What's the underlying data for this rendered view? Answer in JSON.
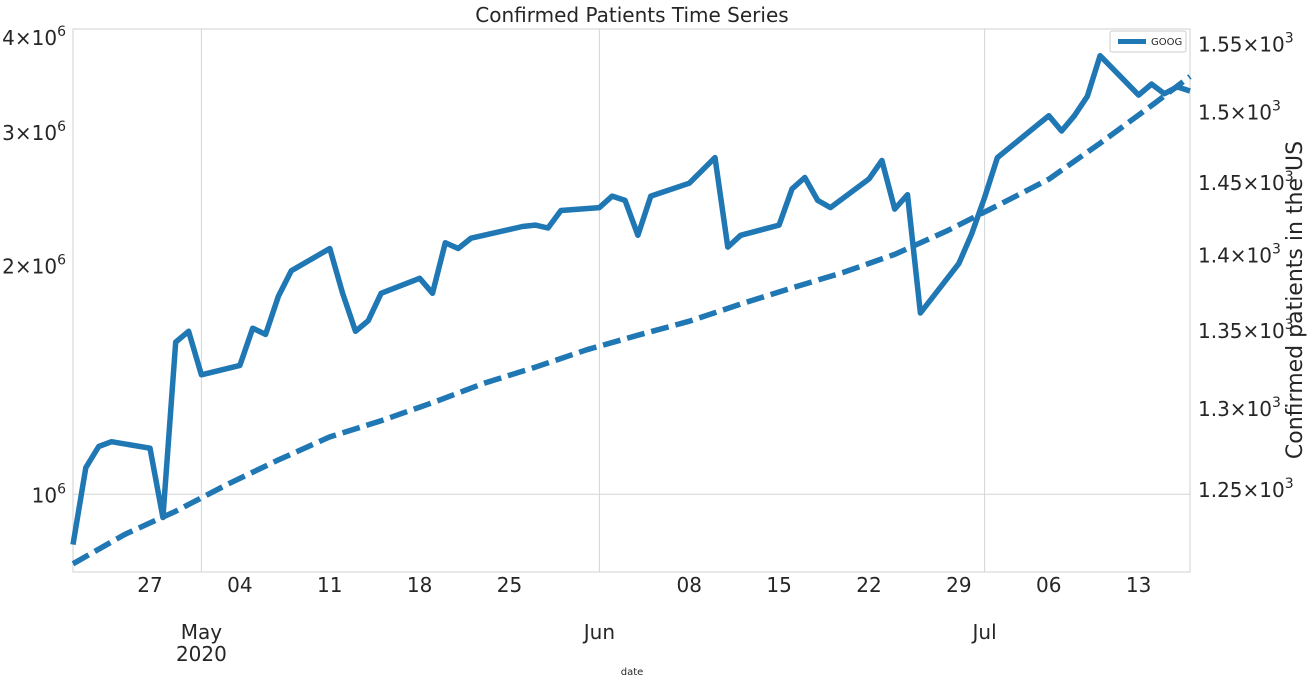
{
  "chart_data": {
    "type": "line",
    "title": "Confirmed Patients Time Series",
    "xlabel": "date",
    "ylabel_right": "Confirmed patients in the US",
    "grid": true,
    "legend_position": "top-right",
    "x_range": [
      "2020-04-21",
      "2020-07-17"
    ],
    "x_day_ticks": [
      "27",
      "04",
      "11",
      "18",
      "25",
      "08",
      "15",
      "22",
      "29",
      "06",
      "13"
    ],
    "x_day_tick_dates": [
      "2020-04-27",
      "2020-05-04",
      "2020-05-11",
      "2020-05-18",
      "2020-05-25",
      "2020-06-08",
      "2020-06-15",
      "2020-06-22",
      "2020-06-29",
      "2020-07-06",
      "2020-07-13"
    ],
    "x_month_ticks": [
      {
        "label": "May",
        "sublabel": "2020",
        "date": "2020-05-01"
      },
      {
        "label": "Jun",
        "sublabel": "",
        "date": "2020-06-01"
      },
      {
        "label": "Jul",
        "sublabel": "",
        "date": "2020-07-01"
      }
    ],
    "y_left": {
      "scale": "log",
      "range": [
        790000,
        4100000
      ],
      "ticks": [
        {
          "value": 1000000,
          "base": "10",
          "exp": "6"
        },
        {
          "value": 2000000,
          "mant": "2",
          "base": "10",
          "exp": "6"
        },
        {
          "value": 3000000,
          "mant": "3",
          "base": "10",
          "exp": "6"
        },
        {
          "value": 4000000,
          "mant": "4",
          "base": "10",
          "exp": "6"
        }
      ]
    },
    "y_right": {
      "scale": "log",
      "range": [
        1201,
        1561
      ],
      "ticks": [
        {
          "value": 1250,
          "mant": "1.25",
          "base": "10",
          "exp": "3"
        },
        {
          "value": 1300,
          "mant": "1.3",
          "base": "10",
          "exp": "3"
        },
        {
          "value": 1350,
          "mant": "1.35",
          "base": "10",
          "exp": "3"
        },
        {
          "value": 1400,
          "mant": "1.4",
          "base": "10",
          "exp": "3"
        },
        {
          "value": 1450,
          "mant": "1.45",
          "base": "10",
          "exp": "3"
        },
        {
          "value": 1500,
          "mant": "1.5",
          "base": "10",
          "exp": "3"
        },
        {
          "value": 1550,
          "mant": "1.55",
          "base": "10",
          "exp": "3"
        }
      ]
    },
    "series": [
      {
        "name": "GOOG",
        "axis": "right",
        "style": "solid",
        "color": "#1f77b4",
        "points": [
          [
            "2020-04-21",
            1217
          ],
          [
            "2020-04-22",
            1263
          ],
          [
            "2020-04-23",
            1276
          ],
          [
            "2020-04-24",
            1279
          ],
          [
            "2020-04-27",
            1275
          ],
          [
            "2020-04-28",
            1233
          ],
          [
            "2020-04-29",
            1342
          ],
          [
            "2020-04-30",
            1349
          ],
          [
            "2020-05-01",
            1321
          ],
          [
            "2020-05-04",
            1327
          ],
          [
            "2020-05-05",
            1351
          ],
          [
            "2020-05-06",
            1347
          ],
          [
            "2020-05-07",
            1372
          ],
          [
            "2020-05-08",
            1389
          ],
          [
            "2020-05-11",
            1404
          ],
          [
            "2020-05-12",
            1374
          ],
          [
            "2020-05-13",
            1349
          ],
          [
            "2020-05-14",
            1356
          ],
          [
            "2020-05-15",
            1374
          ],
          [
            "2020-05-18",
            1384
          ],
          [
            "2020-05-19",
            1374
          ],
          [
            "2020-05-20",
            1408
          ],
          [
            "2020-05-21",
            1404
          ],
          [
            "2020-05-22",
            1411
          ],
          [
            "2020-05-26",
            1419
          ],
          [
            "2020-05-27",
            1420
          ],
          [
            "2020-05-28",
            1418
          ],
          [
            "2020-05-29",
            1430
          ],
          [
            "2020-06-01",
            1432
          ],
          [
            "2020-06-02",
            1440
          ],
          [
            "2020-06-03",
            1437
          ],
          [
            "2020-06-04",
            1413
          ],
          [
            "2020-06-05",
            1440
          ],
          [
            "2020-06-08",
            1449
          ],
          [
            "2020-06-09",
            1458
          ],
          [
            "2020-06-10",
            1467
          ],
          [
            "2020-06-11",
            1405
          ],
          [
            "2020-06-12",
            1413
          ],
          [
            "2020-06-15",
            1420
          ],
          [
            "2020-06-16",
            1445
          ],
          [
            "2020-06-17",
            1453
          ],
          [
            "2020-06-18",
            1437
          ],
          [
            "2020-06-19",
            1432
          ],
          [
            "2020-06-22",
            1452
          ],
          [
            "2020-06-23",
            1465
          ],
          [
            "2020-06-24",
            1431
          ],
          [
            "2020-06-25",
            1441
          ],
          [
            "2020-06-26",
            1361
          ],
          [
            "2020-06-29",
            1394
          ],
          [
            "2020-06-30",
            1414
          ],
          [
            "2020-07-01",
            1439
          ],
          [
            "2020-07-02",
            1467
          ],
          [
            "2020-07-06",
            1497
          ],
          [
            "2020-07-07",
            1486
          ],
          [
            "2020-07-08",
            1497
          ],
          [
            "2020-07-09",
            1511
          ],
          [
            "2020-07-10",
            1541
          ],
          [
            "2020-07-13",
            1512
          ],
          [
            "2020-07-14",
            1520
          ],
          [
            "2020-07-15",
            1513
          ],
          [
            "2020-07-16",
            1518
          ],
          [
            "2020-07-17",
            1515
          ]
        ]
      },
      {
        "name": "",
        "axis": "left",
        "style": "dashed",
        "color": "#1f77b4",
        "points": [
          [
            "2020-04-21",
            810000
          ],
          [
            "2020-04-25",
            885000
          ],
          [
            "2020-04-29",
            950000
          ],
          [
            "2020-05-03",
            1030000
          ],
          [
            "2020-05-07",
            1110000
          ],
          [
            "2020-05-11",
            1190000
          ],
          [
            "2020-05-15",
            1250000
          ],
          [
            "2020-05-19",
            1320000
          ],
          [
            "2020-05-23",
            1400000
          ],
          [
            "2020-05-27",
            1470000
          ],
          [
            "2020-05-31",
            1550000
          ],
          [
            "2020-06-04",
            1620000
          ],
          [
            "2020-06-08",
            1690000
          ],
          [
            "2020-06-12",
            1780000
          ],
          [
            "2020-06-16",
            1870000
          ],
          [
            "2020-06-20",
            1960000
          ],
          [
            "2020-06-24",
            2070000
          ],
          [
            "2020-06-28",
            2220000
          ],
          [
            "2020-07-02",
            2400000
          ],
          [
            "2020-07-06",
            2600000
          ],
          [
            "2020-07-10",
            2900000
          ],
          [
            "2020-07-14",
            3250000
          ],
          [
            "2020-07-17",
            3550000
          ]
        ]
      }
    ]
  }
}
